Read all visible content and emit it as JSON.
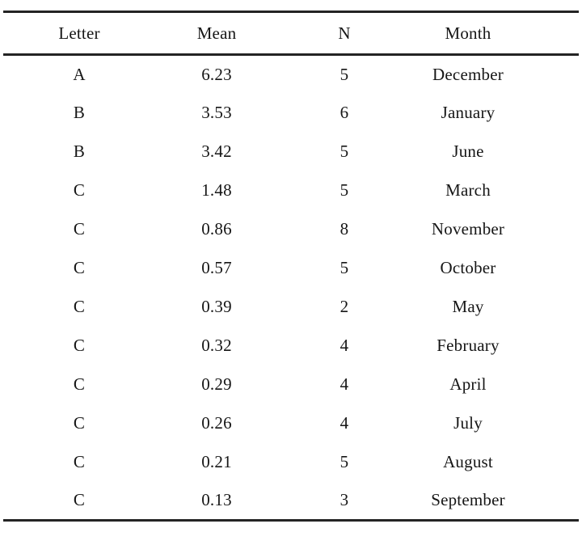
{
  "table": {
    "columns": [
      "Letter",
      "Mean",
      "N",
      "Month"
    ],
    "rows": [
      [
        "A",
        "6.23",
        "5",
        "December"
      ],
      [
        "B",
        "3.53",
        "6",
        "January"
      ],
      [
        "B",
        "3.42",
        "5",
        "June"
      ],
      [
        "C",
        "1.48",
        "5",
        "March"
      ],
      [
        "C",
        "0.86",
        "8",
        "November"
      ],
      [
        "C",
        "0.57",
        "5",
        "October"
      ],
      [
        "C",
        "0.39",
        "2",
        "May"
      ],
      [
        "C",
        "0.32",
        "4",
        "February"
      ],
      [
        "C",
        "0.29",
        "4",
        "April"
      ],
      [
        "C",
        "0.26",
        "4",
        "July"
      ],
      [
        "C",
        "0.21",
        "5",
        "August"
      ],
      [
        "C",
        "0.13",
        "3",
        "September"
      ]
    ]
  },
  "colors": {
    "text": "#161616",
    "rule": "#242424",
    "background": "#ffffff"
  }
}
